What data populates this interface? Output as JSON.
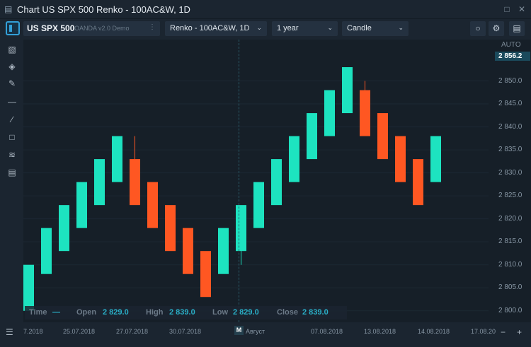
{
  "window": {
    "title": "Chart US SPX 500 Renko - 100AC&W, 1D"
  },
  "toolbar": {
    "symbol": "US SPX 500",
    "source": "OANDA v2.0 Demo",
    "chart_type": "Renko - 100AC&W, 1D",
    "range": "1 year",
    "style": "Candle"
  },
  "price_axis": {
    "auto_label": "AUTO",
    "current_price": "2 856.2",
    "ticks": [
      "2 850.0",
      "2 845.0",
      "2 840.0",
      "2 835.0",
      "2 830.0",
      "2 825.0",
      "2 820.0",
      "2 815.0",
      "2 810.0",
      "2 805.0",
      "2 800.0"
    ]
  },
  "time_axis": {
    "ticks": [
      "7.2018",
      "25.07.2018",
      "27.07.2018",
      "30.07.2018",
      "Август",
      "07.08.2018",
      "13.08.2018",
      "14.08.2018",
      "17.08.20"
    ],
    "marker": "M"
  },
  "ohlc": {
    "time_label": "Time",
    "time_value": "—",
    "open_label": "Open",
    "open_value": "2 829.0",
    "high_label": "High",
    "high_value": "2 839.0",
    "low_label": "Low",
    "low_value": "2 829.0",
    "close_label": "Close",
    "close_value": "2 839.0"
  },
  "colors": {
    "up": "#1de3c0",
    "down": "#ff5722",
    "background": "#161f28"
  },
  "chart_data": {
    "type": "renko",
    "box_size": 5,
    "ylim": [
      2797.5,
      2859
    ],
    "bricks": [
      {
        "dir": "up",
        "open": 2800,
        "close": 2810
      },
      {
        "dir": "up",
        "open": 2808,
        "close": 2818
      },
      {
        "dir": "up",
        "open": 2813,
        "close": 2823
      },
      {
        "dir": "up",
        "open": 2818,
        "close": 2828
      },
      {
        "dir": "up",
        "open": 2823,
        "close": 2833
      },
      {
        "dir": "up",
        "open": 2828,
        "close": 2838
      },
      {
        "dir": "down",
        "open": 2833,
        "close": 2823,
        "wick_high": 2838
      },
      {
        "dir": "down",
        "open": 2828,
        "close": 2818
      },
      {
        "dir": "down",
        "open": 2823,
        "close": 2813
      },
      {
        "dir": "down",
        "open": 2818,
        "close": 2808
      },
      {
        "dir": "down",
        "open": 2813,
        "close": 2803
      },
      {
        "dir": "up",
        "open": 2808,
        "close": 2818
      },
      {
        "dir": "up",
        "open": 2813,
        "close": 2823,
        "wick_low": 2810
      },
      {
        "dir": "up",
        "open": 2818,
        "close": 2828
      },
      {
        "dir": "up",
        "open": 2823,
        "close": 2833
      },
      {
        "dir": "up",
        "open": 2828,
        "close": 2838
      },
      {
        "dir": "up",
        "open": 2833,
        "close": 2843
      },
      {
        "dir": "up",
        "open": 2838,
        "close": 2848
      },
      {
        "dir": "up",
        "open": 2843,
        "close": 2853
      },
      {
        "dir": "down",
        "open": 2848,
        "close": 2838,
        "wick_high": 2850
      },
      {
        "dir": "down",
        "open": 2843,
        "close": 2833
      },
      {
        "dir": "down",
        "open": 2838,
        "close": 2828
      },
      {
        "dir": "down",
        "open": 2833,
        "close": 2823
      },
      {
        "dir": "up",
        "open": 2828,
        "close": 2838
      }
    ]
  }
}
